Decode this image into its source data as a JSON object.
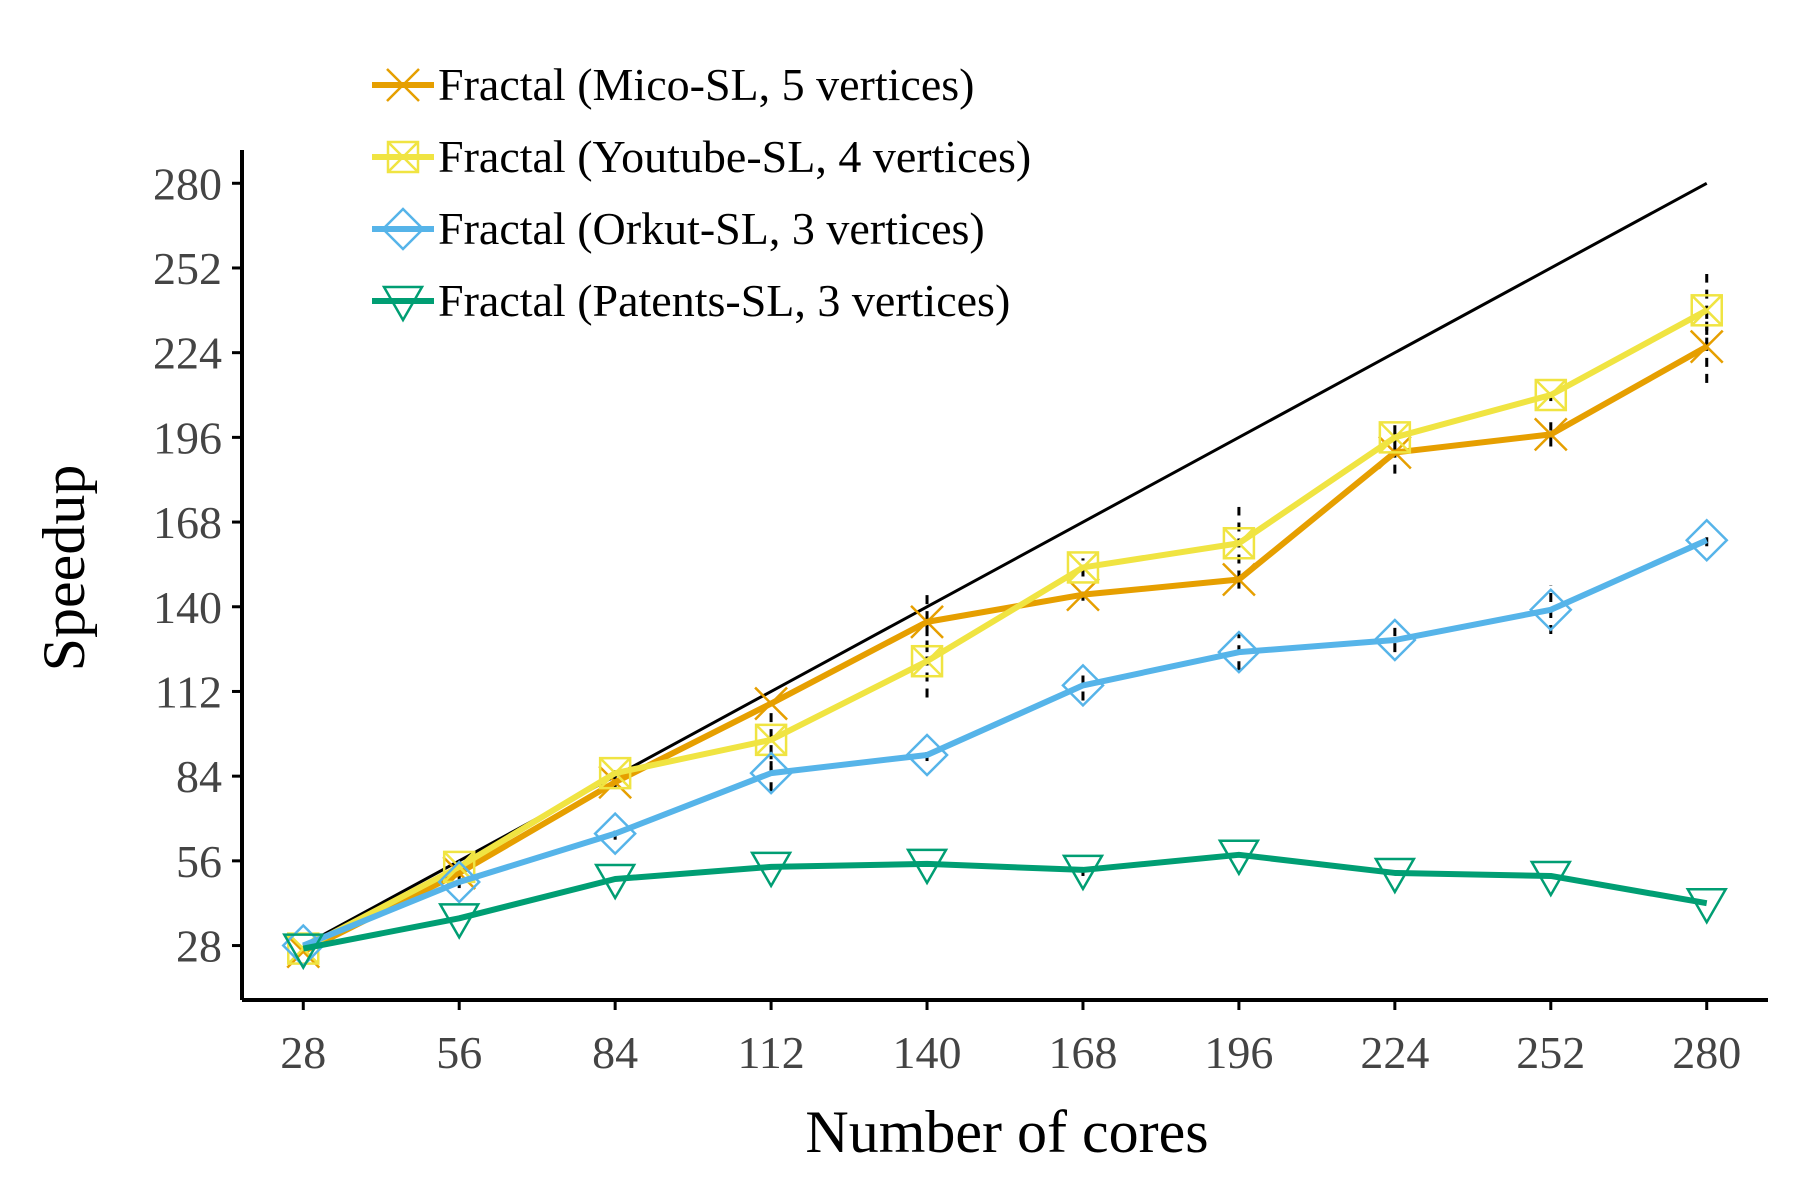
{
  "chart_data": {
    "type": "line",
    "xlabel": "Number of cores",
    "ylabel": "Speedup",
    "x": [
      28,
      56,
      84,
      112,
      140,
      168,
      196,
      224,
      252,
      280
    ],
    "xlim": [
      17,
      291
    ],
    "ylim": [
      10,
      291
    ],
    "xticks": [
      "28",
      "56",
      "84",
      "112",
      "140",
      "168",
      "196",
      "224",
      "252",
      "280"
    ],
    "yticks": [
      "28",
      "56",
      "84",
      "112",
      "140",
      "168",
      "196",
      "224",
      "252",
      "280"
    ],
    "legend_position": "top-left",
    "grid": false,
    "ideal_line": {
      "x": [
        28,
        280
      ],
      "y": [
        28,
        280
      ],
      "color": "#000000"
    },
    "series": [
      {
        "name": "Fractal (Mico-SL, 5 vertices)",
        "color": "#E69F00",
        "marker": "x",
        "values": [
          26,
          52,
          82,
          108,
          135,
          144,
          149,
          191,
          197,
          226
        ],
        "error": [
          0,
          2,
          2,
          0,
          10,
          2,
          3,
          7,
          4,
          12
        ]
      },
      {
        "name": "Fractal (Youtube-SL, 4 vertices)",
        "color": "#F0E442",
        "marker": "boxed-x",
        "values": [
          27,
          54,
          85,
          96,
          122,
          153,
          161,
          196,
          210,
          238
        ],
        "error": [
          0,
          2,
          2,
          10,
          12,
          3,
          12,
          4,
          2,
          12
        ]
      },
      {
        "name": "Fractal (Orkut-SL, 3 vertices)",
        "color": "#56B4E9",
        "marker": "diamond",
        "values": [
          28,
          49,
          65,
          85,
          91,
          114,
          125,
          129,
          139,
          162
        ],
        "error": [
          0,
          2,
          2,
          6,
          2,
          5,
          6,
          4,
          8,
          2
        ]
      },
      {
        "name": "Fractal (Patents-SL, 3 vertices)",
        "color": "#009E73",
        "marker": "triangle-down",
        "values": [
          27,
          37,
          50,
          54,
          55,
          53,
          58,
          52,
          51,
          42
        ],
        "error": [
          0,
          0,
          0,
          0,
          0,
          2,
          0,
          0,
          0,
          0
        ]
      }
    ]
  }
}
